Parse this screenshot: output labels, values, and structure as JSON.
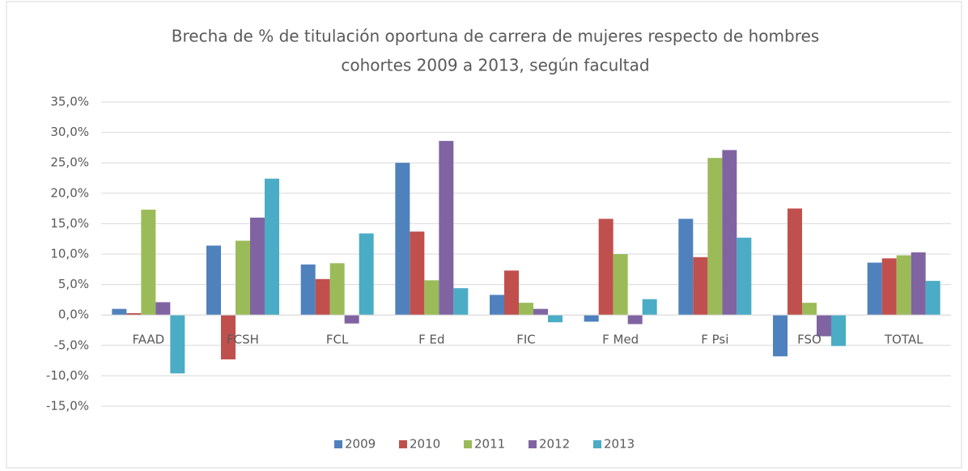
{
  "chart_data": {
    "type": "bar",
    "title": [
      "Brecha de % de titulación oportuna de carrera de mujeres respecto de hombres",
      "cohortes 2009  a 2013,  según facultad"
    ],
    "categories": [
      "FAAD",
      "FCSH",
      "FCL",
      "F Ed",
      "FIC",
      "F Med",
      "F Psi",
      "FSO",
      "TOTAL"
    ],
    "series": [
      {
        "name": "2009",
        "color": "#4f81bd",
        "values": [
          1.0,
          11.4,
          8.3,
          25.0,
          3.3,
          -1.1,
          15.8,
          -6.8,
          8.6
        ]
      },
      {
        "name": "2010",
        "color": "#c0504d",
        "values": [
          0.3,
          -7.3,
          5.9,
          13.7,
          7.3,
          15.8,
          9.5,
          17.5,
          9.3
        ]
      },
      {
        "name": "2011",
        "color": "#9bbb59",
        "values": [
          17.3,
          12.2,
          8.5,
          5.7,
          2.0,
          10.0,
          25.8,
          2.0,
          9.8
        ]
      },
      {
        "name": "2012",
        "color": "#8064a2",
        "values": [
          2.1,
          16.0,
          -1.4,
          28.6,
          1.0,
          -1.5,
          27.1,
          -3.5,
          10.3
        ]
      },
      {
        "name": "2013",
        "color": "#4bacc6",
        "values": [
          -9.6,
          22.4,
          13.4,
          4.4,
          -1.2,
          2.6,
          12.7,
          -5.1,
          5.6
        ]
      }
    ],
    "ylim": [
      -15,
      35
    ],
    "yticks": [
      {
        "value": -15,
        "label": "-15,0%"
      },
      {
        "value": -10,
        "label": "-10,0%"
      },
      {
        "value": -5,
        "label": "-5,0%"
      },
      {
        "value": 0,
        "label": "0,0%"
      },
      {
        "value": 5,
        "label": "5,0%"
      },
      {
        "value": 10,
        "label": "10,0%"
      },
      {
        "value": 15,
        "label": "15,0%"
      },
      {
        "value": 20,
        "label": "20,0%"
      },
      {
        "value": 25,
        "label": "25,0%"
      },
      {
        "value": 30,
        "label": "30,0%"
      },
      {
        "value": 35,
        "label": "35,0%"
      }
    ],
    "grid": true,
    "legend": "bottom"
  }
}
